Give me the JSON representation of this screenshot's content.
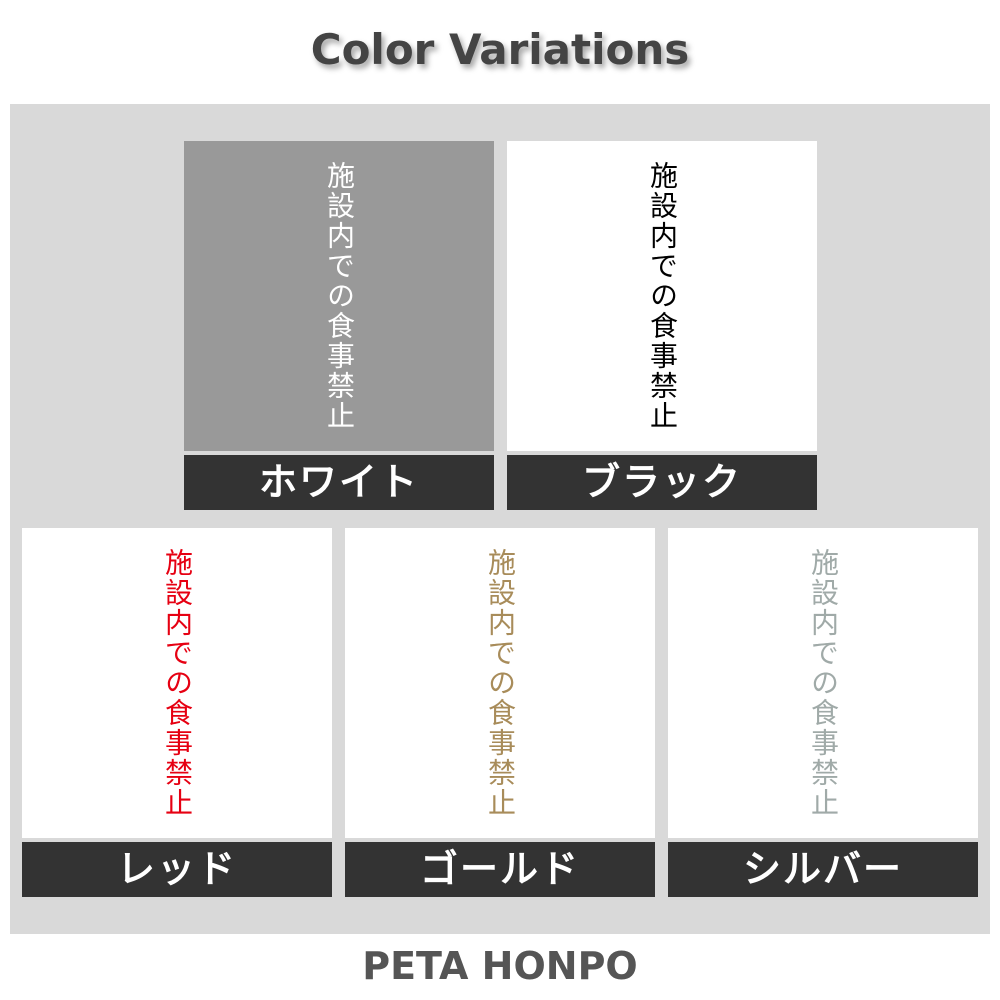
{
  "title": "Color Variations",
  "footer": "PETA HONPO",
  "sign_text": "施設内での食事禁止",
  "variants": [
    {
      "label": "ホワイト",
      "text_color": "#ffffff",
      "background": "#999999"
    },
    {
      "label": "ブラック",
      "text_color": "#000000",
      "background": "#ffffff"
    },
    {
      "label": "レッド",
      "text_color": "#e60012",
      "background": "#ffffff"
    },
    {
      "label": "ゴールド",
      "text_color": "#a88c5a",
      "background": "#ffffff"
    },
    {
      "label": "シルバー",
      "text_color": "#a0aaa8",
      "background": "#ffffff"
    }
  ]
}
